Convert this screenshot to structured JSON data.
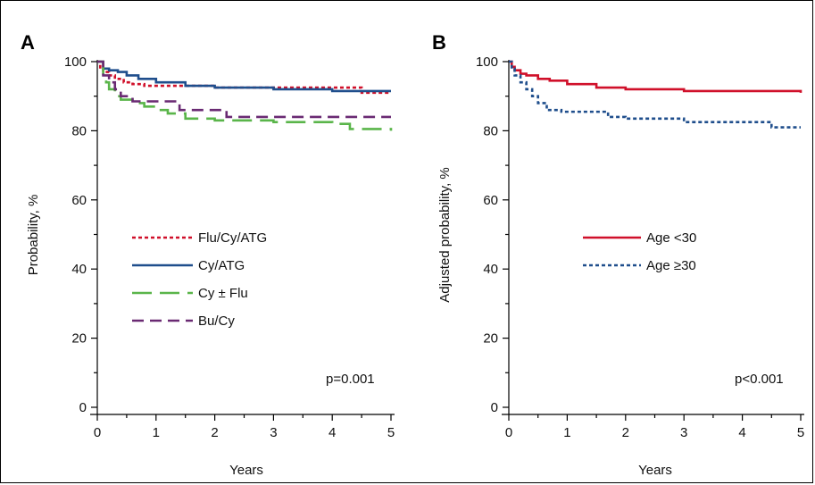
{
  "chart_data": [
    {
      "type": "line",
      "panel_label": "A",
      "xlabel": "Years",
      "ylabel": "Probability, %",
      "xlim": [
        0,
        5
      ],
      "ylim": [
        0,
        100
      ],
      "x_ticks": [
        "0",
        "1",
        "2",
        "3",
        "4",
        "5"
      ],
      "y_ticks": [
        "0",
        "20",
        "40",
        "60",
        "80",
        "100"
      ],
      "annotation": "p=0.001",
      "legend_position": "center-left",
      "series": [
        {
          "name": "Flu/Cy/ATG",
          "color": "#d0102a",
          "dash": "dotted",
          "step": true,
          "x": [
            0,
            0.05,
            0.1,
            0.2,
            0.3,
            0.45,
            0.6,
            0.8,
            1.0,
            1.5,
            2.0,
            3.0,
            4.0,
            4.5,
            5.0
          ],
          "y": [
            100,
            98,
            97,
            96,
            95,
            94,
            93.5,
            93,
            93,
            93,
            92.5,
            92.5,
            92.5,
            91,
            91
          ]
        },
        {
          "name": "Cy/ATG",
          "color": "#1f4e8c",
          "dash": "solid",
          "step": true,
          "x": [
            0,
            0.1,
            0.2,
            0.35,
            0.5,
            0.7,
            1.0,
            1.5,
            2.0,
            3.0,
            4.0,
            5.0
          ],
          "y": [
            100,
            98,
            97.5,
            97,
            96,
            95,
            94,
            93,
            92.5,
            92,
            91.5,
            91.5
          ]
        },
        {
          "name": "Cy ± Flu",
          "color": "#5ab54a",
          "dash": "longdash",
          "step": true,
          "x": [
            0,
            0.1,
            0.15,
            0.2,
            0.3,
            0.4,
            0.6,
            0.8,
            1.0,
            1.2,
            1.5,
            2.0,
            3.0,
            4.0,
            4.3,
            5.0
          ],
          "y": [
            100,
            96,
            94,
            92,
            90,
            89,
            88,
            87,
            86,
            85,
            83.5,
            83,
            82.5,
            82,
            80.5,
            80
          ]
        },
        {
          "name": "Bu/Cy",
          "color": "#6a2a73",
          "dash": "dashed",
          "step": true,
          "x": [
            0,
            0.1,
            0.2,
            0.3,
            0.4,
            0.6,
            1.2,
            1.4,
            1.8,
            2.2,
            3.0,
            5.0
          ],
          "y": [
            100,
            96,
            94,
            92,
            90,
            88.5,
            88.5,
            86,
            86,
            84,
            84,
            84
          ]
        }
      ]
    },
    {
      "type": "line",
      "panel_label": "B",
      "xlabel": "Years",
      "ylabel": "Adjusted probability, %",
      "xlim": [
        0,
        5
      ],
      "ylim": [
        0,
        100
      ],
      "x_ticks": [
        "0",
        "1",
        "2",
        "3",
        "4",
        "5"
      ],
      "y_ticks": [
        "0",
        "20",
        "40",
        "60",
        "80",
        "100"
      ],
      "annotation": "p<0.001",
      "legend_position": "center",
      "series": [
        {
          "name": "Age <30",
          "color": "#d0102a",
          "dash": "solid",
          "step": true,
          "x": [
            0,
            0.05,
            0.1,
            0.2,
            0.3,
            0.5,
            0.7,
            1.0,
            1.5,
            2.0,
            2.5,
            3.0,
            4.0,
            5.0
          ],
          "y": [
            100,
            98.5,
            97.5,
            96.5,
            96,
            95,
            94.5,
            93.5,
            92.5,
            92,
            92,
            91.5,
            91.5,
            91
          ]
        },
        {
          "name": "Age ≥30",
          "color": "#1f4e8c",
          "dash": "dotted",
          "step": true,
          "x": [
            0,
            0.05,
            0.1,
            0.2,
            0.3,
            0.4,
            0.5,
            0.65,
            0.9,
            1.5,
            1.7,
            2.0,
            3.0,
            4.4,
            4.5,
            5.0
          ],
          "y": [
            100,
            98,
            96,
            94,
            92,
            90,
            88,
            86,
            85.5,
            85.5,
            84,
            83.5,
            82.5,
            82.5,
            81,
            81
          ]
        }
      ]
    }
  ]
}
